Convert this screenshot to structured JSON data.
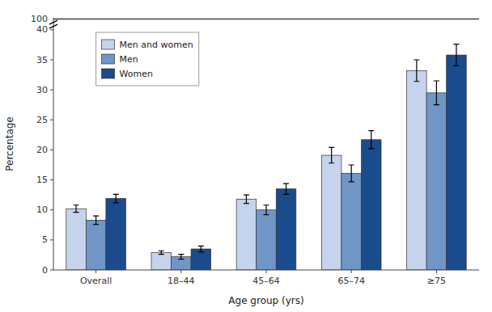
{
  "chart_data": {
    "type": "bar",
    "categories": [
      "Overall",
      "18–44",
      "45–64",
      "65–74",
      "≥75"
    ],
    "series": [
      {
        "name": "Men and women",
        "color": "#c5d4ec",
        "values": [
          10.2,
          2.9,
          11.8,
          19.1,
          33.2
        ],
        "errors": [
          0.6,
          0.3,
          0.7,
          1.3,
          1.8
        ]
      },
      {
        "name": "Men",
        "color": "#7096c8",
        "values": [
          8.3,
          2.2,
          10.0,
          16.1,
          29.5
        ],
        "errors": [
          0.7,
          0.4,
          0.8,
          1.4,
          2.0
        ]
      },
      {
        "name": "Women",
        "color": "#1a4b8c",
        "values": [
          11.9,
          3.5,
          13.5,
          21.7,
          35.8
        ],
        "errors": [
          0.7,
          0.5,
          0.9,
          1.5,
          1.8
        ]
      }
    ],
    "x_label": "Age group (yrs)",
    "y_label": "Percentage",
    "ylim": [
      0,
      42
    ],
    "yticks": [
      0,
      5,
      10,
      15,
      20,
      25,
      30,
      35,
      40
    ],
    "annotations": [
      {
        "text": "100",
        "y": 41.8
      }
    ],
    "legend": "upper left",
    "grid": false
  }
}
